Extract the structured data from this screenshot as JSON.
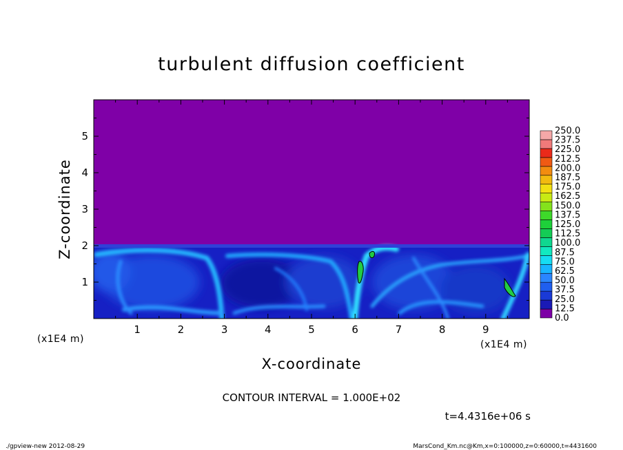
{
  "chart_data": {
    "type": "heatmap",
    "title": "turbulent diffusion coefficient",
    "xlabel": "X-coordinate",
    "ylabel": "Z-coordinate",
    "x_unit": "(x1E4 m)",
    "y_unit": "(x1E4 m)",
    "xlim": [
      0,
      10
    ],
    "ylim": [
      0,
      6
    ],
    "x_ticks": [
      "1",
      "2",
      "3",
      "4",
      "5",
      "6",
      "7",
      "8",
      "9"
    ],
    "y_ticks": [
      "1",
      "2",
      "3",
      "4",
      "5"
    ],
    "background_color": "#7f00a7",
    "boundary_layer_top": 2.0,
    "colorbar": {
      "levels": [
        "0.0",
        "12.5",
        "25.0",
        "37.5",
        "50.0",
        "62.5",
        "75.0",
        "87.5",
        "100.0",
        "112.5",
        "125.0",
        "137.5",
        "150.0",
        "162.5",
        "175.0",
        "187.5",
        "200.0",
        "212.5",
        "225.0",
        "237.5",
        "250.0"
      ],
      "colors": [
        "#7d00a6",
        "#1a1ab6",
        "#1a3ad6",
        "#1f5ff0",
        "#2a86ff",
        "#18b4ff",
        "#16dcf2",
        "#12e9c0",
        "#10d890",
        "#14cc55",
        "#1ed03a",
        "#3ed82a",
        "#84e21c",
        "#c8ea14",
        "#f2e012",
        "#f2ba10",
        "#f28c10",
        "#f05a14",
        "#ea2a1a",
        "#f07a7a",
        "#f5a8a8"
      ]
    },
    "contour_interval_text": "CONTOUR INTERVAL = 1.000E+02",
    "time_text": "t=4.4316e+06 s"
  },
  "footer": {
    "left": "./gpview-new  2012-08-29",
    "right": "MarsCond_Km.nc@Km,x=0:100000,z=0:60000,t=4431600"
  }
}
